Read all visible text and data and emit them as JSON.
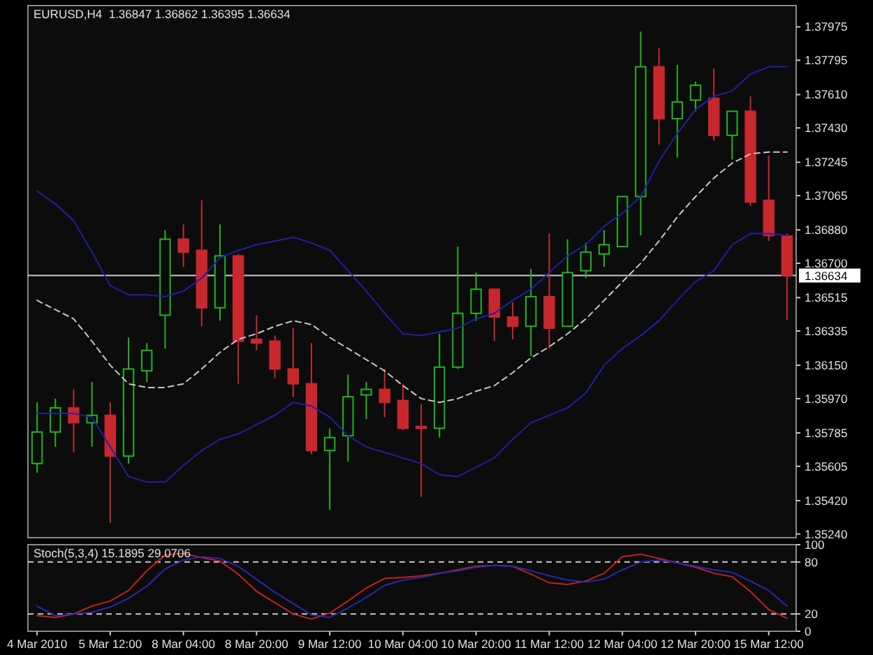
{
  "chart_data": [
    {
      "type": "candlestick",
      "title": "EURUSD,H4  1.36847 1.36862 1.36395 1.36634",
      "categories": [
        null,
        null,
        null,
        null,
        null,
        null,
        null,
        null,
        null,
        null,
        null,
        null,
        null,
        null,
        null,
        null,
        null,
        null,
        null,
        null,
        null,
        null,
        null,
        null,
        null,
        null,
        null,
        null,
        null,
        null,
        null,
        null,
        null,
        null,
        null,
        null,
        null,
        null,
        null,
        null,
        null,
        null
      ],
      "ohlc": [
        [
          1.3562,
          1.3595,
          1.3557,
          1.3579
        ],
        [
          1.3579,
          1.3597,
          1.3571,
          1.3592
        ],
        [
          1.3592,
          1.3602,
          1.3568,
          1.3584
        ],
        [
          1.3584,
          1.3606,
          1.3571,
          1.3588
        ],
        [
          1.3588,
          1.3595,
          1.353,
          1.3566
        ],
        [
          1.3566,
          1.363,
          1.3562,
          1.3613
        ],
        [
          1.3612,
          1.3627,
          1.3606,
          1.3623
        ],
        [
          1.3642,
          1.3688,
          1.3624,
          1.3683
        ],
        [
          1.3683,
          1.3691,
          1.3668,
          1.3676
        ],
        [
          1.3677,
          1.3704,
          1.3636,
          1.3646
        ],
        [
          1.3646,
          1.3691,
          1.3639,
          1.3674
        ],
        [
          1.3674,
          1.3675,
          1.3605,
          1.3628
        ],
        [
          1.3629,
          1.3642,
          1.3623,
          1.3627
        ],
        [
          1.3628,
          1.3631,
          1.3608,
          1.3613
        ],
        [
          1.3613,
          1.3635,
          1.3598,
          1.3605
        ],
        [
          1.3605,
          1.3627,
          1.3567,
          1.3569
        ],
        [
          1.3569,
          1.3581,
          1.3537,
          1.3576
        ],
        [
          1.3577,
          1.361,
          1.3563,
          1.3598
        ],
        [
          1.3599,
          1.3606,
          1.3586,
          1.3602
        ],
        [
          1.3602,
          1.3613,
          1.3587,
          1.3595
        ],
        [
          1.3596,
          1.3605,
          1.358,
          1.3581
        ],
        [
          1.3582,
          1.3594,
          1.3544,
          1.3581
        ],
        [
          1.3581,
          1.3632,
          1.3576,
          1.3614
        ],
        [
          1.3614,
          1.3679,
          1.3613,
          1.3643
        ],
        [
          1.3643,
          1.3665,
          1.3639,
          1.3656
        ],
        [
          1.3656,
          1.3656,
          1.3628,
          1.3641
        ],
        [
          1.3641,
          1.3649,
          1.3629,
          1.3636
        ],
        [
          1.3636,
          1.3667,
          1.362,
          1.3652
        ],
        [
          1.3652,
          1.3686,
          1.3624,
          1.3635
        ],
        [
          1.3636,
          1.3683,
          1.3636,
          1.3665
        ],
        [
          1.3666,
          1.3681,
          1.3662,
          1.3676
        ],
        [
          1.3675,
          1.3688,
          1.3668,
          1.368
        ],
        [
          1.3679,
          1.3706,
          1.3679,
          1.3706
        ],
        [
          1.3706,
          1.3795,
          1.3685,
          1.3776
        ],
        [
          1.3776,
          1.3786,
          1.3734,
          1.3748
        ],
        [
          1.3748,
          1.3777,
          1.3727,
          1.3757
        ],
        [
          1.3758,
          1.3768,
          1.3752,
          1.3766
        ],
        [
          1.3759,
          1.3775,
          1.3736,
          1.3739
        ],
        [
          1.3739,
          1.3752,
          1.3726,
          1.3752
        ],
        [
          1.3752,
          1.376,
          1.3701,
          1.3703
        ],
        [
          1.3704,
          1.3728,
          1.3682,
          1.3685
        ],
        [
          1.36847,
          1.36862,
          1.36395,
          1.36634
        ]
      ],
      "series": [
        {
          "type": "line",
          "color": "#2020a8",
          "values": [
            1.3709,
            1.3702,
            1.3693,
            1.3676,
            1.3658,
            1.3653,
            1.3653,
            1.3652,
            1.3655,
            1.3662,
            1.3673,
            1.3677,
            1.368,
            1.3682,
            1.3684,
            1.3681,
            1.3677,
            1.3666,
            1.3655,
            1.3643,
            1.3632,
            1.3631,
            1.3633,
            1.3635,
            1.364,
            1.3643,
            1.365,
            1.3656,
            1.3665,
            1.3674,
            1.368,
            1.369,
            1.3697,
            1.3706,
            1.3725,
            1.374,
            1.3753,
            1.376,
            1.3763,
            1.3772,
            1.3776,
            1.3776
          ]
        },
        {
          "type": "line",
          "color": "#c8c8c8",
          "line_style": "dashed",
          "values": [
            1.365,
            1.3645,
            1.364,
            1.3628,
            1.3615,
            1.3605,
            1.3603,
            1.3603,
            1.3605,
            1.3613,
            1.3622,
            1.3629,
            1.3632,
            1.3636,
            1.3639,
            1.3637,
            1.363,
            1.3624,
            1.3618,
            1.3612,
            1.3604,
            1.3597,
            1.3595,
            1.3597,
            1.3601,
            1.3604,
            1.3611,
            1.3619,
            1.3625,
            1.3632,
            1.364,
            1.365,
            1.366,
            1.367,
            1.3682,
            1.3695,
            1.3706,
            1.3716,
            1.3724,
            1.3729,
            1.373,
            1.373
          ]
        },
        {
          "type": "line",
          "color": "#2020a8",
          "values": [
            1.3589,
            1.3589,
            1.3589,
            1.3587,
            1.3571,
            1.3555,
            1.3552,
            1.3552,
            1.3561,
            1.3569,
            1.3575,
            1.3578,
            1.3583,
            1.3588,
            1.3595,
            1.3593,
            1.3587,
            1.3577,
            1.3571,
            1.3568,
            1.3565,
            1.3562,
            1.3556,
            1.3555,
            1.356,
            1.3565,
            1.3575,
            1.3584,
            1.3588,
            1.3592,
            1.36,
            1.3615,
            1.3624,
            1.3631,
            1.3639,
            1.365,
            1.366,
            1.3666,
            1.368,
            1.3686,
            1.3686,
            1.3685
          ]
        }
      ],
      "ylim": [
        1.3522,
        1.3809
      ],
      "yticks": [
        1.37975,
        1.37795,
        {
          "value": 1.3761,
          "label": "1.37610"
        },
        {
          "value": 1.3743,
          "label": "1.37430"
        },
        1.37245,
        1.37065,
        {
          "value": 1.3688,
          "label": "1.36880"
        },
        {
          "value": 1.367,
          "label": "1.36700"
        },
        1.36515,
        1.36335,
        {
          "value": 1.3615,
          "label": "1.36150"
        },
        {
          "value": 1.3597,
          "label": "1.35970"
        },
        1.35785,
        1.35605,
        {
          "value": 1.3542,
          "label": "1.35420"
        },
        {
          "value": 1.3524,
          "label": "1.35240"
        }
      ],
      "ref_lines": [
        {
          "axis": "y",
          "value": 1.36634,
          "label": "1.36634",
          "color": "#c8c8c8"
        }
      ],
      "tick_labels": "y"
    },
    {
      "type": "line",
      "title": "Stoch(5,3,4) 15.1895 29.0706",
      "categories": [
        "4 Mar 2010",
        null,
        null,
        null,
        "5 Mar 12:00",
        null,
        null,
        null,
        "8 Mar 04:00",
        null,
        null,
        null,
        "8 Mar 20:00",
        null,
        null,
        null,
        "9 Mar 12:00",
        null,
        null,
        null,
        "10 Mar 04:00",
        null,
        null,
        null,
        "10 Mar 20:00",
        null,
        null,
        null,
        "11 Mar 12:00",
        null,
        null,
        null,
        "12 Mar 04:00",
        null,
        null,
        null,
        "12 Mar 20:00",
        null,
        null,
        null,
        "15 Mar 12:00",
        null
      ],
      "series": [
        {
          "color": "#c81e1e",
          "values": [
            18,
            16,
            20,
            29,
            35,
            47,
            70,
            88,
            90,
            85,
            81,
            66,
            46,
            33,
            20,
            14,
            21,
            35,
            50,
            61,
            62,
            64,
            67,
            71,
            75,
            76,
            75,
            66,
            56,
            54,
            58,
            67,
            86,
            89,
            84,
            79,
            74,
            67,
            63,
            46,
            25,
            15
          ]
        },
        {
          "color": "#2828b4",
          "values": [
            29,
            18,
            20,
            22,
            28,
            38,
            52,
            72,
            82,
            86,
            84,
            75,
            60,
            45,
            32,
            19,
            16,
            27,
            39,
            53,
            59,
            62,
            67,
            70,
            74,
            76,
            75,
            70,
            64,
            59,
            57,
            60,
            71,
            80,
            82,
            79,
            75,
            71,
            68,
            58,
            47,
            29
          ]
        }
      ],
      "ylim": [
        0,
        100
      ],
      "yticks": [
        0,
        20,
        80,
        100
      ],
      "ref_lines": [
        {
          "axis": "y",
          "value": 80,
          "line_style": "dashed",
          "color": "#c8c8c8"
        },
        {
          "axis": "y",
          "value": 20,
          "line_style": "dashed",
          "color": "#c8c8c8"
        }
      ]
    }
  ]
}
